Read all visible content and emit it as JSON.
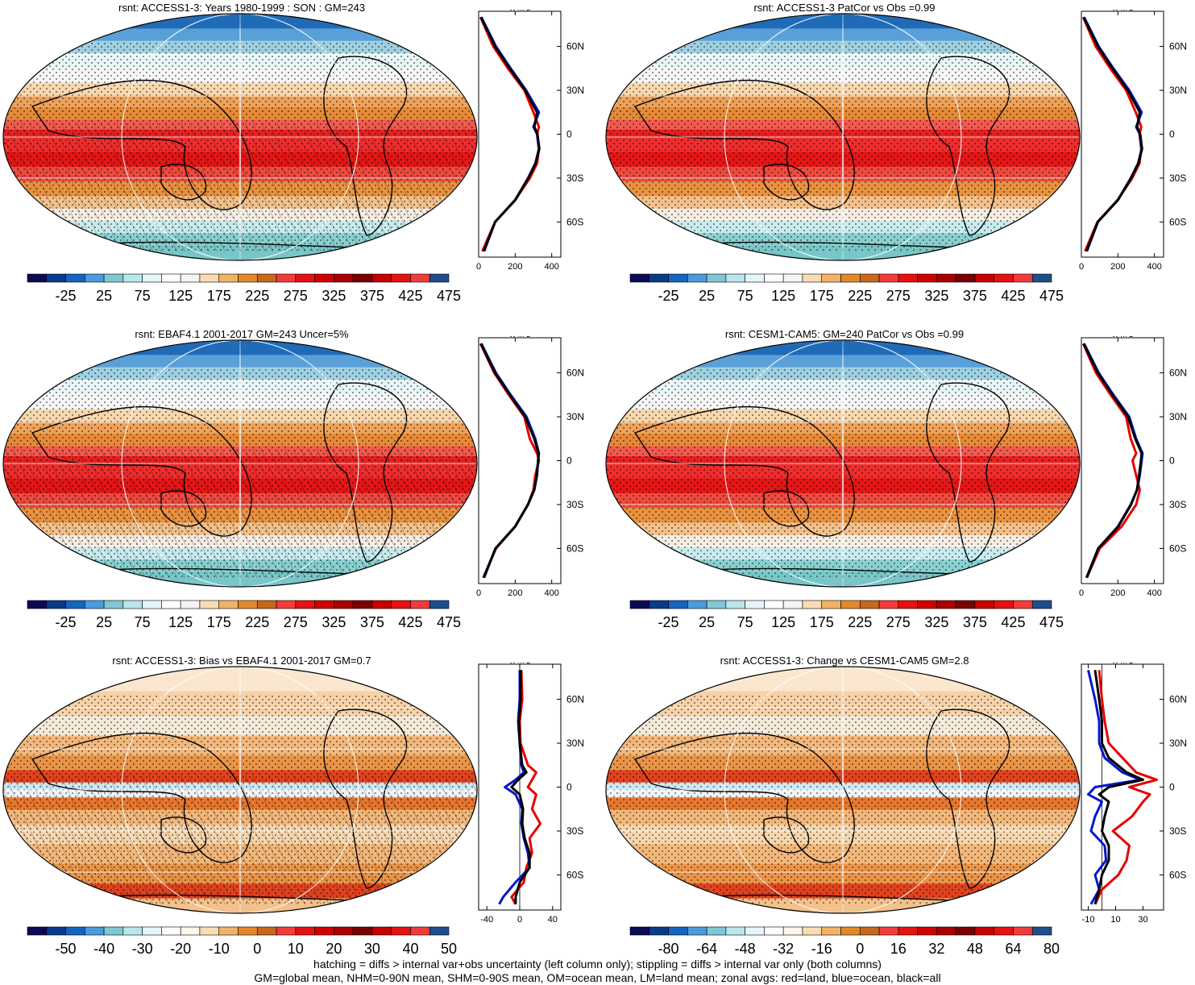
{
  "chart_data": [
    {
      "type": "map+profile",
      "title": "rsnt: ACCESS1-3: Years 1980-1999 : SON : GM=243",
      "colorbar": {
        "ticks": [
          "-25",
          "25",
          "75",
          "125",
          "175",
          "225",
          "275",
          "325",
          "375",
          "425",
          "475"
        ]
      },
      "profile": {
        "unit": "W m-2",
        "xlim": [
          0,
          450
        ],
        "xticks": [
          "0",
          "200",
          "400"
        ],
        "ylabels": [
          "60N",
          "30N",
          "0",
          "30S",
          "60S"
        ],
        "series": [
          {
            "name": "land",
            "color": "#e60000",
            "lat": [
              80,
              60,
              45,
              30,
              15,
              5,
              0,
              -10,
              -20,
              -30,
              -45,
              -60,
              -80
            ],
            "values": [
              10,
              80,
              160,
              250,
              300,
              330,
              320,
              330,
              320,
              280,
              200,
              90,
              20
            ]
          },
          {
            "name": "ocean",
            "color": "#0018cc",
            "lat": [
              80,
              60,
              45,
              30,
              15,
              5,
              0,
              -10,
              -20,
              -30,
              -45,
              -60,
              -80
            ],
            "values": [
              15,
              95,
              175,
              260,
              330,
              300,
              320,
              330,
              310,
              270,
              200,
              90,
              30
            ]
          },
          {
            "name": "all",
            "color": "#000000",
            "lat": [
              80,
              60,
              45,
              30,
              15,
              5,
              0,
              -10,
              -20,
              -30,
              -45,
              -60,
              -80
            ],
            "values": [
              12,
              90,
              170,
              255,
              320,
              305,
              322,
              332,
              312,
              272,
              200,
              90,
              28
            ]
          }
        ]
      }
    },
    {
      "type": "map+profile",
      "title": "rsnt: ACCESS1-3 PatCor vs Obs =0.99",
      "colorbar": {
        "ticks": [
          "-25",
          "25",
          "75",
          "125",
          "175",
          "225",
          "275",
          "325",
          "375",
          "425",
          "475"
        ]
      },
      "profile": {
        "unit": "W m-2",
        "xlim": [
          0,
          450
        ],
        "xticks": [
          "0",
          "200",
          "400"
        ],
        "ylabels": [
          "60N",
          "30N",
          "0",
          "30S",
          "60S"
        ],
        "series": [
          {
            "name": "land",
            "color": "#e60000",
            "lat": [
              80,
              60,
              45,
              30,
              15,
              5,
              0,
              -10,
              -20,
              -30,
              -45,
              -60,
              -80
            ],
            "values": [
              10,
              78,
              158,
              245,
              298,
              328,
              318,
              328,
              318,
              278,
              198,
              88,
              20
            ]
          },
          {
            "name": "ocean",
            "color": "#0018cc",
            "lat": [
              80,
              60,
              45,
              30,
              15,
              5,
              0,
              -10,
              -20,
              -30,
              -45,
              -60,
              -80
            ],
            "values": [
              15,
              95,
              175,
              262,
              330,
              300,
              320,
              330,
              310,
              270,
              200,
              90,
              30
            ]
          },
          {
            "name": "all",
            "color": "#000000",
            "lat": [
              80,
              60,
              45,
              30,
              15,
              5,
              0,
              -10,
              -20,
              -30,
              -45,
              -60,
              -80
            ],
            "values": [
              12,
              90,
              170,
              255,
              320,
              305,
              322,
              332,
              312,
              272,
              200,
              90,
              28
            ]
          }
        ]
      }
    },
    {
      "type": "map+profile",
      "title": "rsnt: EBAF4.1 2001-2017 GM=243 Uncer=5%",
      "colorbar": {
        "ticks": [
          "-25",
          "25",
          "75",
          "125",
          "175",
          "225",
          "275",
          "325",
          "375",
          "425",
          "475"
        ]
      },
      "profile": {
        "unit": "W m-2",
        "xlim": [
          0,
          450
        ],
        "xticks": [
          "0",
          "200",
          "400"
        ],
        "ylabels": [
          "60N",
          "30N",
          "0",
          "30S",
          "60S"
        ],
        "series": [
          {
            "name": "land",
            "color": "#e60000",
            "lat": [
              80,
              60,
              45,
              30,
              15,
              5,
              0,
              -10,
              -20,
              -30,
              -45,
              -60,
              -80
            ],
            "values": [
              10,
              85,
              165,
              250,
              280,
              320,
              330,
              310,
              300,
              270,
              200,
              95,
              25
            ]
          },
          {
            "name": "ocean",
            "color": "#0018cc",
            "lat": [
              80,
              60,
              45,
              30,
              15,
              5,
              0,
              -10,
              -20,
              -30,
              -45,
              -60,
              -80
            ],
            "values": [
              15,
              95,
              175,
              262,
              310,
              330,
              325,
              320,
              305,
              270,
              200,
              92,
              30
            ]
          },
          {
            "name": "all",
            "color": "#000000",
            "lat": [
              80,
              60,
              45,
              30,
              15,
              5,
              0,
              -10,
              -20,
              -30,
              -45,
              -60,
              -80
            ],
            "values": [
              12,
              90,
              170,
              255,
              305,
              328,
              326,
              318,
              304,
              270,
              200,
              92,
              28
            ]
          }
        ]
      }
    },
    {
      "type": "map+profile",
      "title": "rsnt: CESM1-CAM5: GM=240 PatCor vs Obs =0.99",
      "colorbar": {
        "ticks": [
          "-25",
          "25",
          "75",
          "125",
          "175",
          "225",
          "275",
          "325",
          "375",
          "425",
          "475"
        ]
      },
      "profile": {
        "unit": "W m-2",
        "xlim": [
          0,
          450
        ],
        "xticks": [
          "0",
          "200",
          "400"
        ],
        "ylabels": [
          "60N",
          "30N",
          "0",
          "30S",
          "60S"
        ],
        "series": [
          {
            "name": "land",
            "color": "#e60000",
            "lat": [
              80,
              60,
              45,
              30,
              15,
              5,
              0,
              -10,
              -20,
              -30,
              -45,
              -60,
              -80
            ],
            "values": [
              10,
              80,
              160,
              245,
              270,
              300,
              280,
              300,
              320,
              300,
              220,
              100,
              30
            ]
          },
          {
            "name": "ocean",
            "color": "#0018cc",
            "lat": [
              80,
              60,
              45,
              30,
              15,
              5,
              0,
              -10,
              -20,
              -30,
              -45,
              -60,
              -80
            ],
            "values": [
              15,
              95,
              175,
              262,
              300,
              335,
              330,
              320,
              305,
              270,
              200,
              92,
              30
            ]
          },
          {
            "name": "all",
            "color": "#000000",
            "lat": [
              80,
              60,
              45,
              30,
              15,
              5,
              0,
              -10,
              -20,
              -30,
              -45,
              -60,
              -80
            ],
            "values": [
              12,
              90,
              170,
              255,
              295,
              330,
              326,
              316,
              304,
              272,
              202,
              92,
              28
            ]
          }
        ]
      }
    },
    {
      "type": "map+profile",
      "title": "rsnt: ACCESS1-3: Bias vs EBAF4.1 2001-2017  GM=0.7",
      "colorbar": {
        "ticks": [
          "-50",
          "-40",
          "-30",
          "-20",
          "-10",
          "0",
          "10",
          "20",
          "30",
          "40",
          "50"
        ]
      },
      "profile": {
        "unit": "W m-2",
        "xlim": [
          -50,
          50
        ],
        "xticks": [
          "-40",
          "0",
          "40"
        ],
        "ylabels": [
          "60N",
          "30N",
          "0",
          "30S",
          "60S"
        ],
        "series": [
          {
            "name": "land",
            "color": "#e60000",
            "lat": [
              80,
              60,
              45,
              30,
              15,
              10,
              5,
              0,
              -5,
              -15,
              -25,
              -35,
              -45,
              -55,
              -65,
              -75,
              -80
            ],
            "values": [
              2,
              3,
              0,
              1,
              10,
              20,
              15,
              10,
              20,
              15,
              25,
              12,
              15,
              8,
              5,
              -10,
              -5
            ]
          },
          {
            "name": "ocean",
            "color": "#0018cc",
            "lat": [
              80,
              60,
              45,
              30,
              15,
              10,
              5,
              0,
              -5,
              -15,
              -25,
              -35,
              -45,
              -55,
              -65,
              -75,
              -80
            ],
            "values": [
              0,
              0,
              -2,
              0,
              2,
              5,
              -5,
              -18,
              -5,
              3,
              2,
              5,
              10,
              12,
              -5,
              -20,
              -25
            ]
          },
          {
            "name": "all",
            "color": "#000000",
            "lat": [
              80,
              60,
              45,
              30,
              15,
              10,
              5,
              0,
              -5,
              -15,
              -25,
              -35,
              -45,
              -55,
              -65,
              -75,
              -80
            ],
            "values": [
              1,
              1,
              -1,
              0,
              3,
              8,
              -2,
              -10,
              0,
              4,
              3,
              6,
              12,
              12,
              0,
              -5,
              -5
            ]
          }
        ]
      }
    },
    {
      "type": "map+profile",
      "title": "rsnt: ACCESS1-3: Change vs CESM1-CAM5 GM=2.8",
      "colorbar": {
        "ticks": [
          "-80",
          "-64",
          "-48",
          "-32",
          "-16",
          "0",
          "16",
          "32",
          "48",
          "64",
          "80"
        ]
      },
      "profile": {
        "unit": "W m-2",
        "xlim": [
          -15,
          45
        ],
        "xticks": [
          "-10",
          "10",
          "30"
        ],
        "ylabels": [
          "60N",
          "30N",
          "0",
          "30S",
          "60S"
        ],
        "series": [
          {
            "name": "land",
            "color": "#e60000",
            "lat": [
              80,
              60,
              45,
              30,
              20,
              10,
              5,
              0,
              -5,
              -10,
              -20,
              -30,
              -40,
              -50,
              -60,
              -70,
              -80
            ],
            "values": [
              -2,
              0,
              2,
              5,
              15,
              25,
              40,
              20,
              35,
              30,
              22,
              8,
              20,
              18,
              12,
              0,
              -5
            ]
          },
          {
            "name": "ocean",
            "color": "#0018cc",
            "lat": [
              80,
              60,
              45,
              30,
              20,
              10,
              5,
              0,
              -5,
              -10,
              -20,
              -30,
              -40,
              -50,
              -60,
              -70,
              -80
            ],
            "values": [
              -10,
              -5,
              -2,
              -2,
              2,
              15,
              28,
              -5,
              -10,
              0,
              -5,
              -8,
              2,
              3,
              -5,
              -2,
              -8
            ]
          },
          {
            "name": "all",
            "color": "#000000",
            "lat": [
              80,
              60,
              45,
              30,
              20,
              10,
              5,
              0,
              -5,
              -10,
              -20,
              -30,
              -40,
              -50,
              -60,
              -70,
              -80
            ],
            "values": [
              -5,
              -2,
              0,
              0,
              5,
              18,
              30,
              5,
              -2,
              5,
              2,
              0,
              5,
              5,
              0,
              -2,
              -5
            ]
          }
        ]
      }
    }
  ],
  "footer": {
    "line1": "hatching = diffs > internal var+obs uncertainty (left column only); stippling = diffs > internal var only (both columns)",
    "line2": "GM=global mean, NHM=0-90N mean, SHM=0-90S mean, OM=ocean mean, LM=land mean; zonal avgs: red=land, blue=ocean, black=all"
  }
}
